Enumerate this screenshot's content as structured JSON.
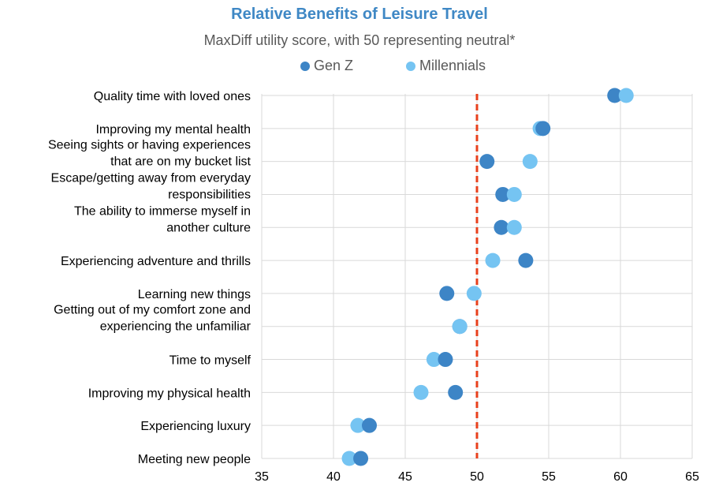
{
  "chart_data": {
    "type": "scatter",
    "title": "Relative Benefits of Leisure Travel",
    "subtitle": "MaxDiff utility score, with 50 representing neutral*",
    "xlim": [
      35,
      65
    ],
    "xticks": [
      35,
      40,
      45,
      50,
      55,
      60,
      65
    ],
    "reference_line": 50,
    "categories": [
      [
        "Quality time with loved ones"
      ],
      [
        "Improving my mental health"
      ],
      [
        "Seeing sights or having experiences",
        "that are on my bucket list"
      ],
      [
        "Escape/getting away from everyday",
        "responsibilities"
      ],
      [
        "The ability to immerse myself in",
        "another culture"
      ],
      [
        "Experiencing adventure and thrills"
      ],
      [
        "Learning new things"
      ],
      [
        "Getting out of my comfort zone and",
        "experiencing the unfamiliar"
      ],
      [
        "Time to myself"
      ],
      [
        "Improving my physical health"
      ],
      [
        "Experiencing luxury"
      ],
      [
        "Meeting new people"
      ]
    ],
    "series": [
      {
        "name": "Gen Z",
        "color": "#3d85c6",
        "values": [
          59.6,
          54.6,
          50.7,
          51.8,
          51.7,
          53.4,
          47.9,
          48.8,
          47.8,
          48.5,
          42.5,
          41.9
        ]
      },
      {
        "name": "Millennials",
        "color": "#75c4f2",
        "values": [
          60.4,
          54.4,
          53.7,
          52.6,
          52.6,
          51.1,
          49.8,
          48.8,
          47.0,
          46.1,
          41.7,
          41.1
        ]
      }
    ],
    "colors": {
      "title": "#3f88c5",
      "reference_line": "#e8401c",
      "grid": "#d9d9d9"
    }
  }
}
